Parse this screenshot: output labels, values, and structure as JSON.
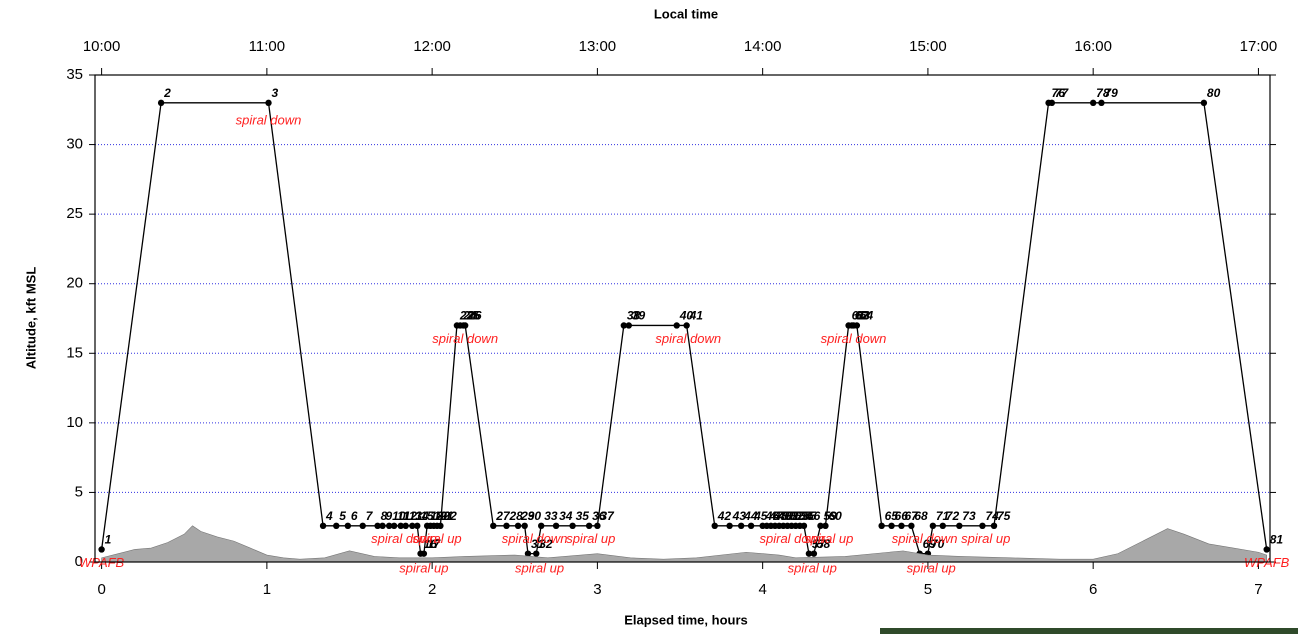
{
  "chart_data": {
    "type": "line",
    "title": "Local time",
    "x_label": "Elapsed time, hours",
    "y_label": "Altitude, kft MSL",
    "xlim": [
      -0.04,
      7.07
    ],
    "ylim": [
      0,
      35
    ],
    "xticks": [
      0,
      1,
      2,
      3,
      4,
      5,
      6,
      7
    ],
    "yticks": [
      0,
      5,
      10,
      15,
      20,
      25,
      30,
      35
    ],
    "x2ticks": [
      {
        "value": 0,
        "label": "10:00"
      },
      {
        "value": 1,
        "label": "11:00"
      },
      {
        "value": 2,
        "label": "12:00"
      },
      {
        "value": 3,
        "label": "13:00"
      },
      {
        "value": 4,
        "label": "14:00"
      },
      {
        "value": 5,
        "label": "15:00"
      },
      {
        "value": 6,
        "label": "16:00"
      },
      {
        "value": 7,
        "label": "17:00"
      }
    ],
    "grid": true,
    "grid_color": "#3030e0",
    "series": [
      {
        "color": "#000000",
        "labels": [
          "1",
          "2",
          "3",
          "4",
          "5",
          "6",
          "7",
          "8",
          "9",
          "10",
          "11",
          "12",
          "13",
          "14",
          "15",
          "16",
          "17",
          "18",
          "19",
          "20",
          "21",
          "22",
          "23",
          "24",
          "25",
          "26",
          "27",
          "28",
          "29",
          "30",
          "31",
          "32",
          "33",
          "34",
          "35",
          "36",
          "37",
          "38",
          "39",
          "40",
          "41",
          "42",
          "43",
          "44",
          "45",
          "46",
          "47",
          "48",
          "49",
          "50",
          "51",
          "52",
          "53",
          "54",
          "55",
          "56",
          "57",
          "58",
          "59",
          "60",
          "61",
          "62",
          "63",
          "64",
          "65",
          "66",
          "67",
          "68",
          "69",
          "70",
          "71",
          "72",
          "73",
          "74",
          "75",
          "76",
          "77",
          "78",
          "79",
          "80",
          "81"
        ],
        "x": [
          0.0,
          0.36,
          1.01,
          1.34,
          1.42,
          1.49,
          1.58,
          1.67,
          1.7,
          1.74,
          1.77,
          1.81,
          1.84,
          1.88,
          1.91,
          1.93,
          1.95,
          1.97,
          1.99,
          2.01,
          2.03,
          2.05,
          2.15,
          2.17,
          2.19,
          2.2,
          2.37,
          2.45,
          2.52,
          2.56,
          2.58,
          2.63,
          2.66,
          2.75,
          2.85,
          2.95,
          3.0,
          3.16,
          3.19,
          3.48,
          3.54,
          3.71,
          3.8,
          3.87,
          3.93,
          4.0,
          4.025,
          4.05,
          4.075,
          4.1,
          4.125,
          4.15,
          4.175,
          4.2,
          4.225,
          4.25,
          4.28,
          4.31,
          4.35,
          4.38,
          4.52,
          4.54,
          4.55,
          4.57,
          4.72,
          4.78,
          4.84,
          4.9,
          4.95,
          5.0,
          5.03,
          5.09,
          5.19,
          5.33,
          5.4,
          5.73,
          5.75,
          6.0,
          6.05,
          6.67,
          7.05
        ],
        "values": [
          0.9,
          33,
          33,
          2.6,
          2.6,
          2.6,
          2.6,
          2.6,
          2.6,
          2.6,
          2.6,
          2.6,
          2.6,
          2.6,
          2.6,
          0.6,
          0.6,
          2.6,
          2.6,
          2.6,
          2.6,
          2.6,
          17,
          17,
          17,
          17,
          2.6,
          2.6,
          2.6,
          2.6,
          0.6,
          0.6,
          2.6,
          2.6,
          2.6,
          2.6,
          2.6,
          17,
          17,
          17,
          17,
          2.6,
          2.6,
          2.6,
          2.6,
          2.6,
          2.6,
          2.6,
          2.6,
          2.6,
          2.6,
          2.6,
          2.6,
          2.6,
          2.6,
          2.6,
          0.6,
          0.6,
          2.6,
          2.6,
          17,
          17,
          17,
          17,
          2.6,
          2.6,
          2.6,
          2.6,
          0.6,
          0.6,
          2.6,
          2.6,
          2.6,
          2.6,
          2.6,
          33,
          33,
          33,
          33,
          33,
          0.9
        ]
      },
      {
        "color": "#a8a8a8",
        "fill": true,
        "x": [
          0.0,
          0.1,
          0.2,
          0.3,
          0.4,
          0.5,
          0.55,
          0.6,
          0.7,
          0.8,
          0.9,
          1.0,
          1.1,
          1.2,
          1.35,
          1.5,
          1.65,
          1.8,
          2.0,
          2.2,
          2.5,
          2.7,
          3.0,
          3.2,
          3.4,
          3.6,
          3.9,
          4.1,
          4.2,
          4.5,
          4.85,
          5.0,
          5.2,
          5.5,
          5.8,
          6.0,
          6.15,
          6.3,
          6.45,
          6.55,
          6.7,
          6.85,
          7.0,
          7.05
        ],
        "values": [
          0.3,
          0.6,
          0.9,
          1.0,
          1.4,
          2.0,
          2.6,
          2.2,
          1.8,
          1.5,
          1.0,
          0.5,
          0.3,
          0.2,
          0.3,
          0.8,
          0.4,
          0.3,
          0.3,
          0.4,
          0.5,
          0.3,
          0.6,
          0.3,
          0.2,
          0.3,
          0.7,
          0.5,
          0.3,
          0.4,
          0.8,
          0.5,
          0.4,
          0.3,
          0.2,
          0.2,
          0.6,
          1.5,
          2.4,
          2.0,
          1.3,
          1.0,
          0.7,
          0.5
        ]
      }
    ],
    "annotations": [
      {
        "text": "spiral down",
        "x": 1.01,
        "y": 31.7
      },
      {
        "text": "spiral down",
        "x": 2.2,
        "y": 16.0
      },
      {
        "text": "spiral down",
        "x": 3.55,
        "y": 16.0
      },
      {
        "text": "spiral down",
        "x": 4.55,
        "y": 16.0
      },
      {
        "text": "spiral down",
        "x": 1.83,
        "y": 1.6
      },
      {
        "text": "spiral up",
        "x": 2.03,
        "y": 1.6
      },
      {
        "text": "spiral up",
        "x": 1.95,
        "y": -0.5
      },
      {
        "text": "spiral down",
        "x": 2.62,
        "y": 1.6
      },
      {
        "text": "spiral up",
        "x": 2.96,
        "y": 1.6
      },
      {
        "text": "spiral up",
        "x": 2.65,
        "y": -0.5
      },
      {
        "text": "spiral down",
        "x": 4.18,
        "y": 1.6
      },
      {
        "text": "spiral up",
        "x": 4.4,
        "y": 1.6
      },
      {
        "text": "spiral up",
        "x": 4.3,
        "y": -0.5
      },
      {
        "text": "spiral down",
        "x": 4.98,
        "y": 1.6
      },
      {
        "text": "spiral up",
        "x": 5.35,
        "y": 1.6
      },
      {
        "text": "spiral up",
        "x": 5.02,
        "y": -0.5
      },
      {
        "text": "WPAFB",
        "x": 0.0,
        "y": -0.1
      },
      {
        "text": "WPAFB",
        "x": 7.05,
        "y": -0.1
      }
    ]
  }
}
